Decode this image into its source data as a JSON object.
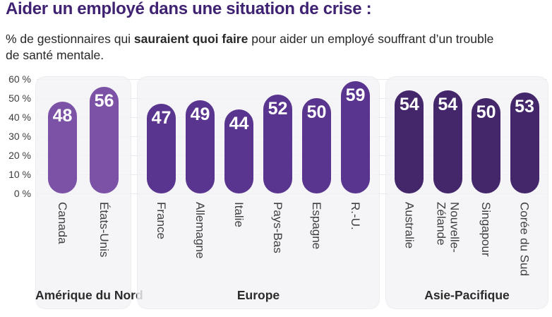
{
  "header": {
    "title": "Aider un employé dans une situation de crise :",
    "subtitle_prefix": "% de gestionnaires qui ",
    "subtitle_bold": "sauraient quoi faire",
    "subtitle_suffix": " pour aider un employé souffrant d’un trouble de santé mentale."
  },
  "chart_data": {
    "type": "bar",
    "title": "Aider un employé dans une situation de crise :",
    "subtitle": "% de gestionnaires qui sauraient quoi faire pour aider un employé souffrant d’un trouble de santé mentale.",
    "ylabel": "%",
    "ylim": [
      0,
      60
    ],
    "yticks": [
      0,
      10,
      20,
      30,
      40,
      50,
      60
    ],
    "ytick_format": "{v} %",
    "grid": true,
    "value_label_color": "#ffffff",
    "groups": [
      {
        "label": "Amérique du Nord",
        "bar_color": "#7B52A5",
        "categories": [
          "Canada",
          "États-Unis"
        ],
        "values": [
          48,
          56
        ]
      },
      {
        "label": "Europe",
        "bar_color": "#5A358F",
        "categories": [
          "France",
          "Allemagne",
          "Italie",
          "Pays-Bas",
          "Espagne",
          "R.-U."
        ],
        "values": [
          47,
          49,
          44,
          52,
          50,
          59
        ]
      },
      {
        "label": "Asie-Pacifique",
        "bar_color": "#44276B",
        "categories": [
          "Australie",
          "Nouvelle-\nZélande",
          "Singapour",
          "Corée du Sud"
        ],
        "values": [
          54,
          54,
          50,
          53
        ]
      }
    ]
  }
}
